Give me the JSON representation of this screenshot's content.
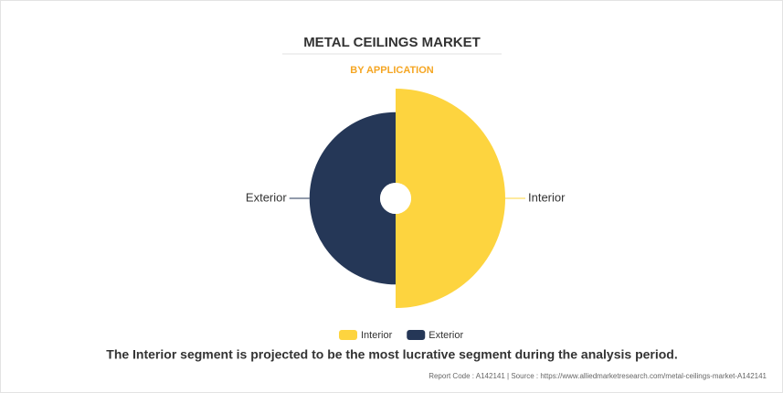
{
  "chart_data": {
    "type": "rose",
    "title": "METAL CEILINGS MARKET",
    "subtitle": "BY APPLICATION",
    "categories": [
      "Interior",
      "Exterior"
    ],
    "values": [
      56,
      44
    ],
    "colors": [
      "#fdd43f",
      "#253757"
    ],
    "legend": "bottom",
    "caption": "The Interior segment is projected to be the most lucrative segment during the analysis period.",
    "footer": "Report Code : A142141  |  Source : https://www.alliedmarketresearch.com/metal-ceilings-market-A142141"
  }
}
